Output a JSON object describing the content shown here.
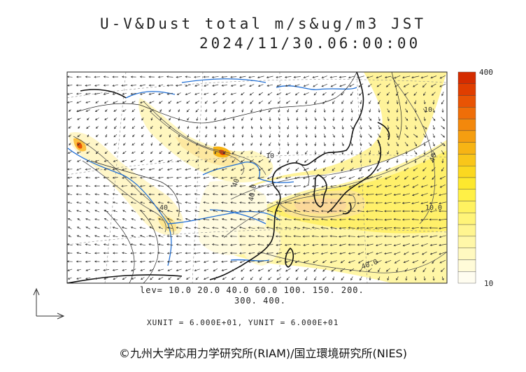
{
  "header": {
    "title": "U-V&Dust total m/s&ug/m3 JST",
    "datetime": "2024/11/30.06:00:00"
  },
  "legend": {
    "levels_line1": "lev= 10.0 20.0 40.0 60.0 100. 150. 200.",
    "levels_line2": "300. 400.",
    "colorbar_max": "400",
    "colorbar_min": "10",
    "colors": [
      "#fffdf0",
      "#fffbd8",
      "#fff9c0",
      "#fff7a8",
      "#fff590",
      "#fff478",
      "#fff260",
      "#fff046",
      "#fde82e",
      "#fbd820",
      "#f9c61a",
      "#f7b414",
      "#f59e10",
      "#f3880c",
      "#ef6e08",
      "#e85404",
      "#e03e00",
      "#d42c00"
    ]
  },
  "units_line": "XUNIT = 6.000E+01, YUNIT = 6.000E+01",
  "contour_labels": [
    "10",
    "40",
    "40",
    "10",
    "40",
    "40.0",
    "40.0",
    "10.0"
  ],
  "credit": "©九州大学応用力学研究所(RIAM)/国立環境研究所(NIES)"
}
